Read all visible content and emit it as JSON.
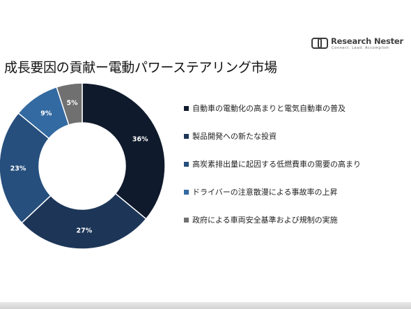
{
  "logo": {
    "name": "Research Nester",
    "tagline": "Connect. Lead. Accomplish",
    "icon": "research-nester-logo-mark"
  },
  "colors": {
    "navy": "#0f1a2c",
    "dark_blue": "#1d3658",
    "mid_blue": "#264f7d",
    "steel_blue": "#336aa1",
    "gray": "#707070"
  },
  "chart_data": {
    "type": "pie",
    "donut": true,
    "title": "成長要因の貢献ー電動パワーステアリング市場",
    "legend_position": "right",
    "series": [
      {
        "name": "自動車の電動化の高まりと電気自動車の普及",
        "value": 36,
        "label": "36%",
        "color": "#0f1a2c"
      },
      {
        "name": "製品開発への新たな投資",
        "value": 27,
        "label": "27%",
        "color": "#1d3658"
      },
      {
        "name": "高炭素排出量に起因する低燃費車の需要の高まり",
        "value": 23,
        "label": "23%",
        "color": "#264f7d"
      },
      {
        "name": "ドライバーの注意散漫による事故率の上昇",
        "value": 9,
        "label": "9%",
        "color": "#336aa1"
      },
      {
        "name": "政府による車両安全基準および規制の実施",
        "value": 5,
        "label": "5%",
        "color": "#707070"
      }
    ]
  }
}
